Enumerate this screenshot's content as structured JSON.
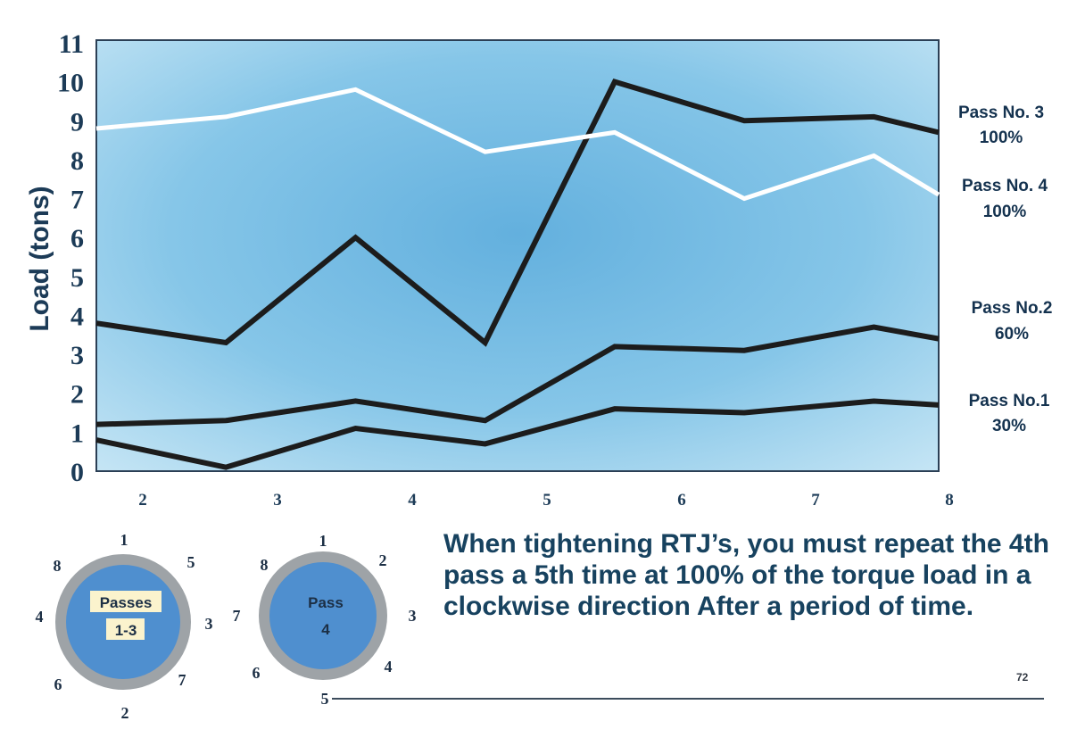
{
  "chart_data": {
    "type": "line",
    "ylabel": "Load (tons)",
    "xlabel": "",
    "ylim": [
      0,
      11
    ],
    "yticks": [
      "0",
      "1",
      "2",
      "3",
      "4",
      "5",
      "6",
      "7",
      "8",
      "9",
      "10",
      "11"
    ],
    "xticks": [
      "2",
      "3",
      "4",
      "5",
      "6",
      "7",
      "8"
    ],
    "x": [
      1.5,
      2.5,
      3.5,
      4.5,
      5.5,
      6.5,
      7.5,
      8.0
    ],
    "grid": false,
    "series": [
      {
        "name": "Pass No.1",
        "pct": "30%",
        "color": "#1c1c1c",
        "values": [
          0.8,
          0.1,
          1.1,
          0.7,
          1.6,
          1.5,
          1.8,
          1.7
        ]
      },
      {
        "name": "Pass No.2",
        "pct": "60%",
        "color": "#1c1c1c",
        "values": [
          1.2,
          1.3,
          1.8,
          1.3,
          3.2,
          3.1,
          3.7,
          3.4
        ]
      },
      {
        "name": "",
        "pct": "",
        "color": "#1c1c1c",
        "values": [
          3.8,
          3.3,
          6.0,
          3.3,
          10.0,
          9.0,
          9.1,
          8.7
        ]
      },
      {
        "name": "Pass No. 4",
        "pct": "100%",
        "color": "#ffffff",
        "values": [
          8.8,
          9.1,
          9.8,
          8.2,
          8.7,
          7.0,
          8.1,
          7.1
        ]
      }
    ],
    "end_labels": [
      {
        "name": "Pass No. 3",
        "pct": "100%",
        "y": 8.7
      },
      {
        "name": "Pass No. 4",
        "pct": "100%",
        "y": 7.1
      },
      {
        "name": "Pass No.2",
        "pct": "60%",
        "y": 3.4
      },
      {
        "name": "Pass No.1",
        "pct": "30%",
        "y": 1.7
      }
    ],
    "colors": {
      "plot_bg": "#7fc3e6",
      "axis_text": "#1c3b57"
    }
  },
  "bolt_diagrams": [
    {
      "label": [
        "Passes",
        "1-3"
      ],
      "numbers": [
        "1",
        "5",
        "3",
        "7",
        "2",
        "6",
        "4",
        "8"
      ],
      "center_color": "#4f8fcf",
      "ring_color": "#9ea3a7"
    },
    {
      "label": [
        "Pass",
        "4"
      ],
      "numbers": [
        "1",
        "2",
        "3",
        "4",
        "5",
        "6",
        "7",
        "8"
      ],
      "center_color": "#4f8fcf",
      "ring_color": "#9ea3a7"
    }
  ],
  "callout_text": "When tightening RTJ’s, you must repeat the 4th pass a 5th time at 100% of the torque load in a clockwise direction After a period of time.",
  "page_number": "72"
}
